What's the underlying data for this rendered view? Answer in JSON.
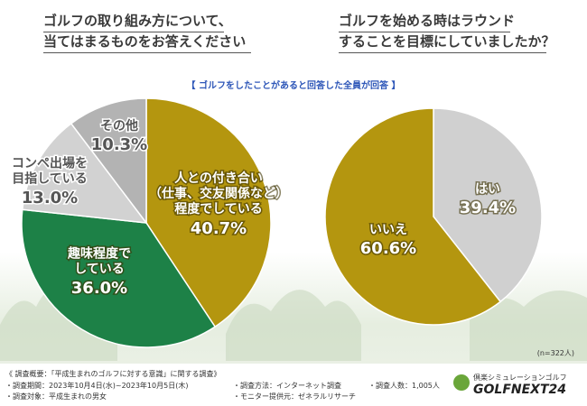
{
  "chart_data": [
    {
      "type": "pie",
      "title": "ゴルフの取り組み方について、\n当てはまるものをお答えください",
      "categories": [
        "人との付き合い\n（仕事、交友関係など）\n程度でしている",
        "趣味程度で\nしている",
        "コンペ出場を\n目指している",
        "その他"
      ],
      "values": [
        40.7,
        36.0,
        13.0,
        10.3
      ],
      "value_labels": [
        "40.7%",
        "36.0%",
        "13.0%",
        "10.3%"
      ],
      "colors": [
        "#b4960f",
        "#1d8147",
        "#d2d2d2",
        "#b3b3b3"
      ]
    },
    {
      "type": "pie",
      "title": "ゴルフを始める時はラウンド\nすることを目標にしていましたか？",
      "categories": [
        "はい",
        "いいえ"
      ],
      "values": [
        39.4,
        60.6
      ],
      "value_labels": [
        "39.4%",
        "60.6%"
      ],
      "colors": [
        "#d0d0d0",
        "#b4960f"
      ]
    }
  ],
  "subtitle": "【 ゴルフをしたことがあると回答した全員が回答 】",
  "sample": "(n=322人)",
  "footer": {
    "heading": "《 調査概要：「平成生まれのゴルフに対する意識」に関する調査》",
    "items": [
      "・調査期間：2023年10月4日(水)~2023年10月5日(木)",
      "・調査方法：インターネット調査",
      "・調査人数：1,005人",
      "・調査対象：平成生まれの男女",
      "・モニター提供元：ゼネラルリサーチ"
    ],
    "logo_small": "倶楽シミュレーションゴルフ",
    "logo": "GOLFNEXT24"
  }
}
